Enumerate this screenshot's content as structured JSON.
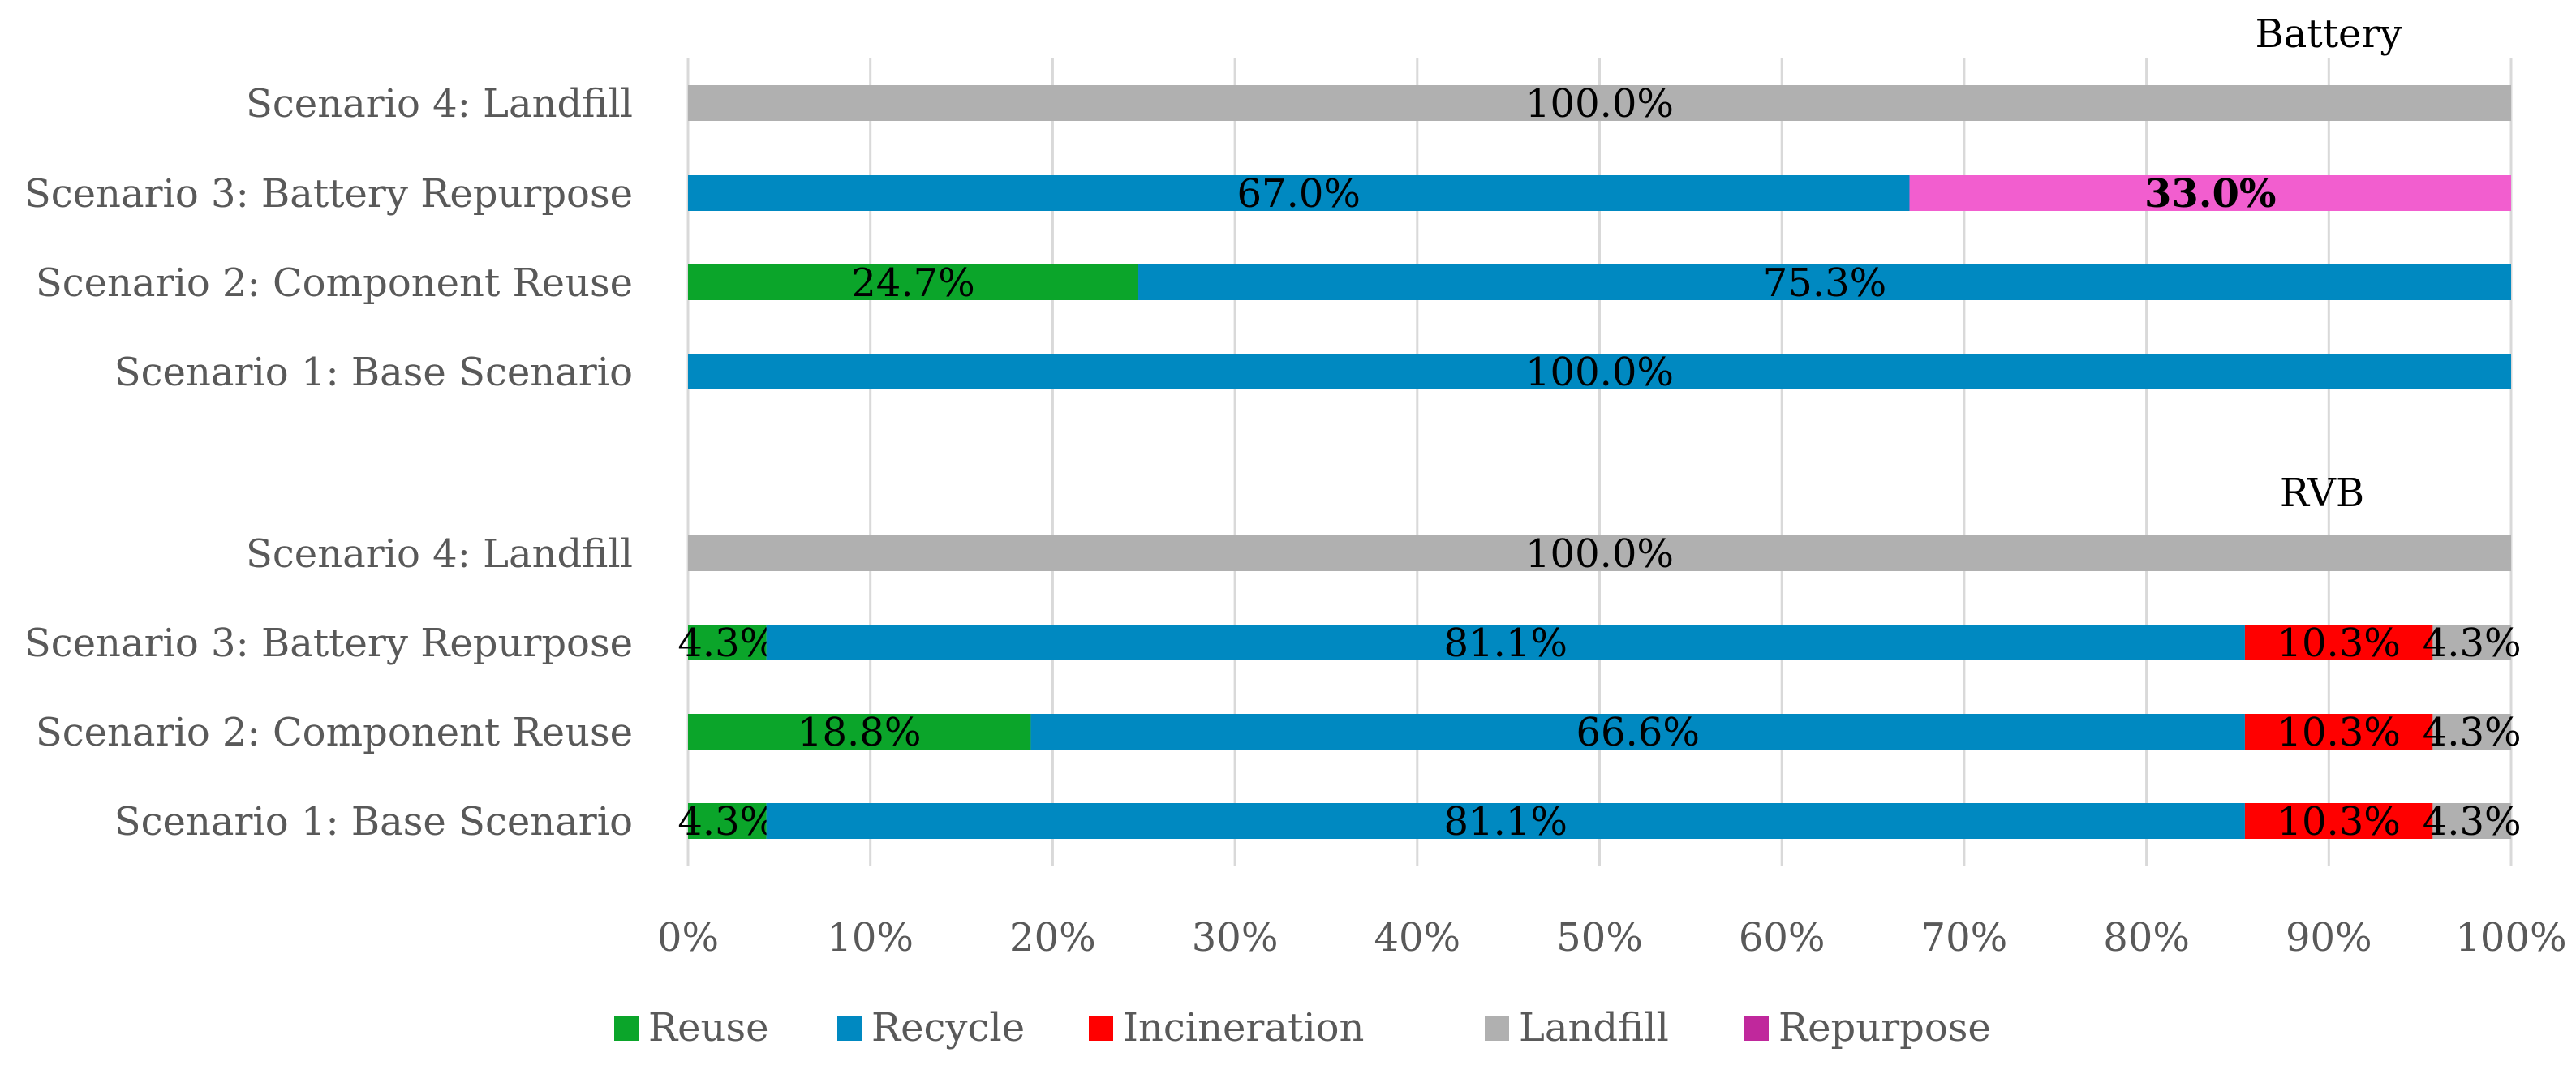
{
  "chart_data": {
    "type": "stacked-bar-horizontal",
    "xlim": [
      0,
      100
    ],
    "x_ticks": [
      "0%",
      "10%",
      "20%",
      "30%",
      "40%",
      "50%",
      "60%",
      "70%",
      "80%",
      "90%",
      "100%"
    ],
    "legend": [
      {
        "name": "Reuse",
        "color": "#0ba52a"
      },
      {
        "name": "Recycle",
        "color": "#0089c1"
      },
      {
        "name": "Incineration",
        "color": "#ff0000"
      },
      {
        "name": "Landfill",
        "color": "#b0b0b0"
      },
      {
        "name": "Repurpose",
        "color": "#c0289c"
      }
    ],
    "groups": [
      {
        "title": "Battery",
        "bars": [
          {
            "label": "Scenario 4: Landfill",
            "segments": [
              {
                "series": "Landfill",
                "value": 100.0,
                "color": "#b0b0b0",
                "label": "100.0%"
              }
            ]
          },
          {
            "label": "Scenario 3: Battery Repurpose",
            "segments": [
              {
                "series": "Recycle",
                "value": 67.0,
                "color": "#0089c1",
                "label": "67.0%"
              },
              {
                "series": "Repurpose",
                "value": 33.0,
                "color": "#f25ecf",
                "label": "33.0%",
                "bold": true
              }
            ]
          },
          {
            "label": "Scenario 2: Component Reuse",
            "segments": [
              {
                "series": "Reuse",
                "value": 24.7,
                "color": "#0ba52a",
                "label": "24.7%"
              },
              {
                "series": "Recycle",
                "value": 75.3,
                "color": "#0089c1",
                "label": "75.3%"
              }
            ]
          },
          {
            "label": "Scenario 1: Base Scenario",
            "segments": [
              {
                "series": "Recycle",
                "value": 100.0,
                "color": "#0089c1",
                "label": "100.0%"
              }
            ]
          }
        ]
      },
      {
        "title": "RVB",
        "bars": [
          {
            "label": "Scenario 4: Landfill",
            "segments": [
              {
                "series": "Landfill",
                "value": 100.0,
                "color": "#b0b0b0",
                "label": "100.0%"
              }
            ]
          },
          {
            "label": "Scenario 3: Battery Repurpose",
            "segments": [
              {
                "series": "Reuse",
                "value": 4.3,
                "color": "#0ba52a",
                "label": "4.3%"
              },
              {
                "series": "Recycle",
                "value": 81.1,
                "color": "#0089c1",
                "label": "81.1%"
              },
              {
                "series": "Incineration",
                "value": 10.3,
                "color": "#ff0000",
                "label": "10.3%"
              },
              {
                "series": "Landfill",
                "value": 4.3,
                "color": "#b0b0b0",
                "label": "4.3%"
              }
            ]
          },
          {
            "label": "Scenario 2: Component Reuse",
            "segments": [
              {
                "series": "Reuse",
                "value": 18.8,
                "color": "#0ba52a",
                "label": "18.8%"
              },
              {
                "series": "Recycle",
                "value": 66.6,
                "color": "#0089c1",
                "label": "66.6%"
              },
              {
                "series": "Incineration",
                "value": 10.3,
                "color": "#ff0000",
                "label": "10.3%"
              },
              {
                "series": "Landfill",
                "value": 4.3,
                "color": "#b0b0b0",
                "label": "4.3%"
              }
            ]
          },
          {
            "label": "Scenario 1: Base Scenario",
            "segments": [
              {
                "series": "Reuse",
                "value": 4.3,
                "color": "#0ba52a",
                "label": "4.3%"
              },
              {
                "series": "Recycle",
                "value": 81.1,
                "color": "#0089c1",
                "label": "81.1%"
              },
              {
                "series": "Incineration",
                "value": 10.3,
                "color": "#ff0000",
                "label": "10.3%"
              },
              {
                "series": "Landfill",
                "value": 4.3,
                "color": "#b0b0b0",
                "label": "4.3%"
              }
            ]
          }
        ]
      }
    ]
  }
}
